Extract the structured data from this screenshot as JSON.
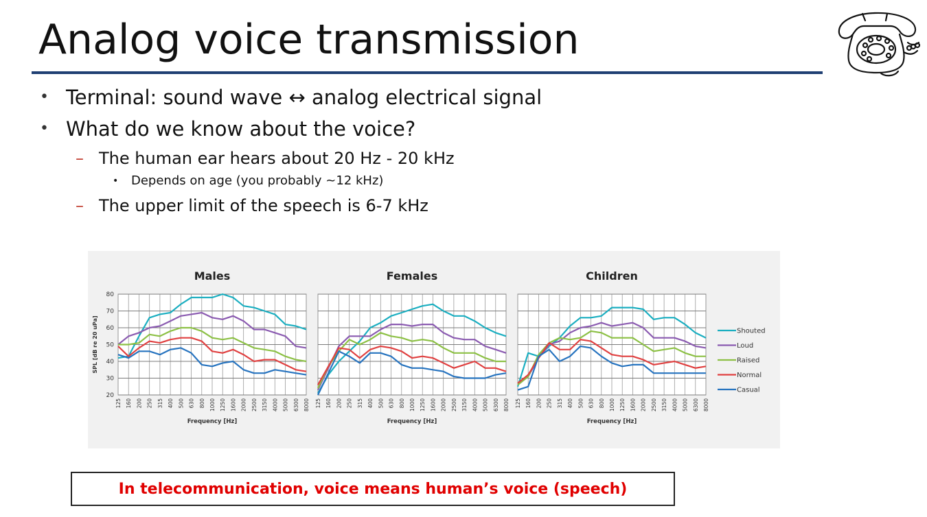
{
  "slide": {
    "title": "Analog voice transmission",
    "bullets": [
      {
        "level": 1,
        "marker": "•",
        "text": "Terminal: sound wave ↔ analog electrical signal"
      },
      {
        "level": 1,
        "marker": "•",
        "text": "What do we know about the voice?"
      },
      {
        "level": 2,
        "marker": "–",
        "text": "The human ear hears about 20 Hz - 20 kHz"
      },
      {
        "level": 3,
        "marker": "•",
        "text": "Depends on age (you probably ~12 kHz)"
      },
      {
        "level": 2,
        "marker": "–",
        "text": "The upper limit of the speech is 6-7 kHz"
      }
    ],
    "callout": "In telecommunication, voice means human’s voice (speech)",
    "logo_icon": "rotary-telephone-icon",
    "colors": {
      "title_rule": "#1f3f73",
      "dash": "#c0392b",
      "callout_text": "#e00000"
    }
  },
  "chart_data": [
    {
      "type": "line",
      "title": "Males",
      "xlabel": "Frequency [Hz]",
      "ylabel": "SPL [dB re 20 uPa]",
      "ylim": [
        20,
        80
      ],
      "yticks": [
        20,
        30,
        40,
        50,
        60,
        70,
        80
      ],
      "categories": [
        "125",
        "160",
        "200",
        "250",
        "315",
        "400",
        "500",
        "630",
        "800",
        "1000",
        "1250",
        "1600",
        "2000",
        "2500",
        "3150",
        "4000",
        "5000",
        "6300",
        "8000"
      ],
      "series": [
        {
          "name": "Shouted",
          "color": "#1aaec0",
          "values": [
            42,
            43,
            55,
            66,
            68,
            69,
            74,
            78,
            78,
            78,
            80,
            78,
            73,
            72,
            70,
            68,
            62,
            61,
            59
          ]
        },
        {
          "name": "Loud",
          "color": "#8a5ab0",
          "values": [
            50,
            55,
            57,
            60,
            61,
            64,
            67,
            68,
            69,
            66,
            65,
            67,
            64,
            59,
            59,
            57,
            55,
            49,
            48
          ]
        },
        {
          "name": "Raised",
          "color": "#8cc044",
          "values": [
            50,
            50,
            51,
            56,
            55,
            58,
            60,
            60,
            58,
            54,
            53,
            54,
            51,
            48,
            47,
            46,
            43,
            41,
            40
          ]
        },
        {
          "name": "Normal",
          "color": "#e04040",
          "values": [
            49,
            43,
            48,
            52,
            51,
            53,
            54,
            54,
            52,
            46,
            45,
            47,
            44,
            40,
            41,
            41,
            38,
            35,
            34
          ]
        },
        {
          "name": "Casual",
          "color": "#2673bf",
          "values": [
            44,
            42,
            46,
            46,
            44,
            47,
            48,
            45,
            38,
            37,
            39,
            40,
            35,
            33,
            33,
            35,
            34,
            33,
            32
          ]
        }
      ],
      "legend": "right",
      "grid": true
    },
    {
      "type": "line",
      "title": "Females",
      "xlabel": "Frequency [Hz]",
      "ylim": [
        20,
        80
      ],
      "categories": [
        "125",
        "160",
        "200",
        "250",
        "315",
        "400",
        "500",
        "630",
        "800",
        "1000",
        "1250",
        "1600",
        "2000",
        "2500",
        "3150",
        "4000",
        "5000",
        "6300",
        "8000"
      ],
      "series": [
        {
          "name": "Shouted",
          "color": "#1aaec0",
          "values": [
            21,
            32,
            40,
            46,
            52,
            60,
            63,
            67,
            69,
            71,
            73,
            74,
            70,
            67,
            67,
            64,
            60,
            57,
            55
          ]
        },
        {
          "name": "Loud",
          "color": "#8a5ab0",
          "values": [
            23,
            36,
            49,
            55,
            55,
            55,
            59,
            62,
            62,
            61,
            62,
            62,
            57,
            54,
            53,
            53,
            49,
            47,
            45
          ]
        },
        {
          "name": "Raised",
          "color": "#8cc044",
          "values": [
            24,
            37,
            46,
            53,
            50,
            53,
            57,
            55,
            54,
            52,
            53,
            52,
            48,
            45,
            45,
            45,
            42,
            40,
            40
          ]
        },
        {
          "name": "Normal",
          "color": "#e04040",
          "values": [
            26,
            37,
            48,
            47,
            42,
            47,
            49,
            48,
            46,
            42,
            43,
            42,
            39,
            36,
            38,
            40,
            36,
            36,
            34
          ]
        },
        {
          "name": "Casual",
          "color": "#2673bf",
          "values": [
            20,
            33,
            46,
            43,
            39,
            45,
            45,
            43,
            38,
            36,
            36,
            35,
            34,
            31,
            30,
            30,
            30,
            32,
            33
          ]
        }
      ],
      "legend": "right",
      "grid": true
    },
    {
      "type": "line",
      "title": "Children",
      "xlabel": "Frequency [Hz]",
      "ylim": [
        20,
        80
      ],
      "categories": [
        "125",
        "160",
        "200",
        "250",
        "315",
        "400",
        "500",
        "630",
        "800",
        "1000",
        "1250",
        "1600",
        "2000",
        "2500",
        "3150",
        "4000",
        "5000",
        "6300",
        "8000"
      ],
      "series": [
        {
          "name": "Shouted",
          "color": "#1aaec0",
          "values": [
            25,
            45,
            43,
            49,
            54,
            61,
            66,
            66,
            67,
            72,
            72,
            72,
            71,
            65,
            66,
            66,
            62,
            57,
            54
          ]
        },
        {
          "name": "Loud",
          "color": "#8a5ab0",
          "values": [
            26,
            31,
            42,
            50,
            52,
            57,
            60,
            61,
            63,
            61,
            62,
            63,
            60,
            54,
            54,
            54,
            52,
            49,
            48
          ]
        },
        {
          "name": "Raised",
          "color": "#8cc044",
          "values": [
            26,
            31,
            44,
            51,
            54,
            53,
            54,
            58,
            57,
            54,
            54,
            54,
            50,
            46,
            47,
            48,
            45,
            43,
            43
          ]
        },
        {
          "name": "Normal",
          "color": "#e04040",
          "values": [
            27,
            32,
            42,
            51,
            47,
            47,
            53,
            52,
            48,
            44,
            43,
            43,
            41,
            38,
            39,
            40,
            38,
            36,
            37
          ]
        },
        {
          "name": "Casual",
          "color": "#2673bf",
          "values": [
            23,
            25,
            43,
            47,
            40,
            43,
            49,
            48,
            43,
            39,
            37,
            38,
            38,
            33,
            33,
            33,
            33,
            33,
            33
          ]
        }
      ],
      "legend": "right",
      "grid": true
    }
  ],
  "legend_items": [
    "Shouted",
    "Loud",
    "Raised",
    "Normal",
    "Casual"
  ]
}
